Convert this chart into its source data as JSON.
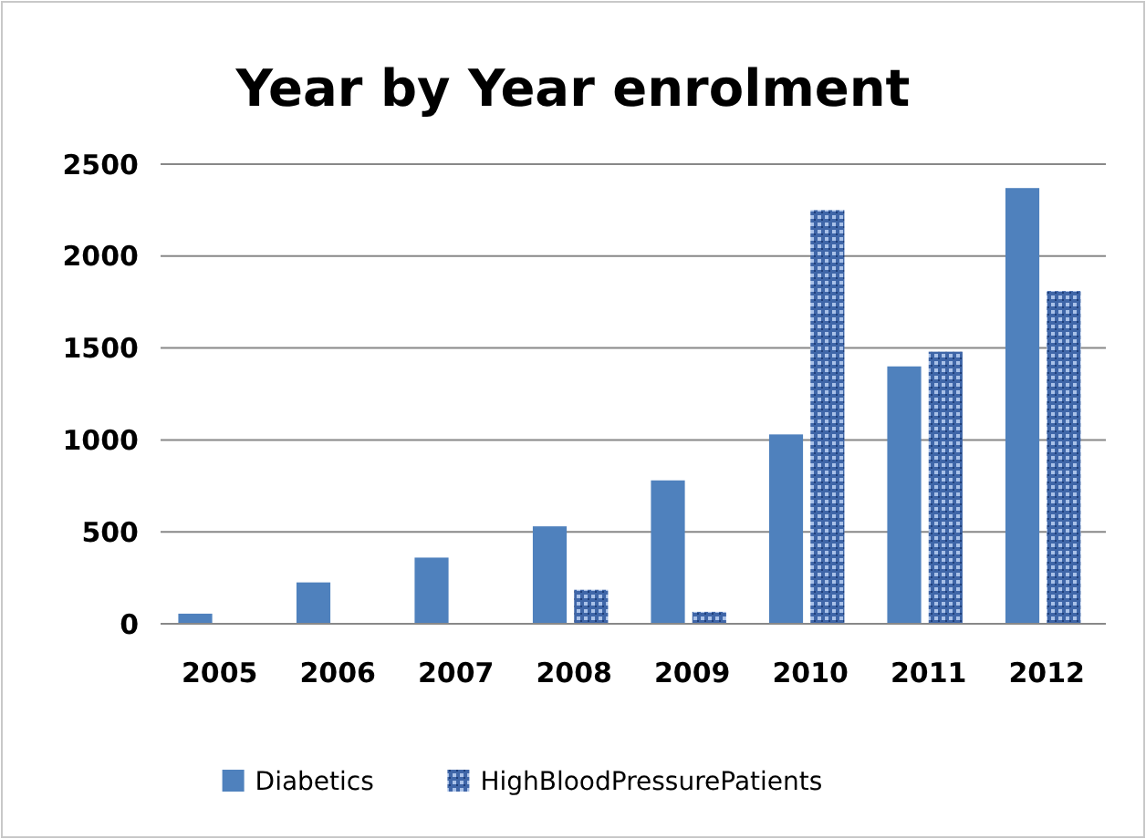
{
  "chart_data": {
    "type": "bar",
    "title": "Year by Year enrolment",
    "categories": [
      "2005",
      "2006",
      "2007",
      "2008",
      "2009",
      "2010",
      "2011",
      "2012"
    ],
    "series": [
      {
        "name": "Diabetics",
        "color": "#4f81bd",
        "values": [
          55,
          225,
          360,
          530,
          780,
          1030,
          1400,
          2370
        ]
      },
      {
        "name": "HighBloodPressurePatients",
        "color": "#3f66a8",
        "values": [
          0,
          0,
          0,
          185,
          65,
          2250,
          1480,
          1810
        ]
      }
    ],
    "ylim": [
      0,
      2500
    ],
    "yticks": [
      0,
      500,
      1000,
      1500,
      2000,
      2500
    ],
    "grid": "y",
    "legend": "bottom"
  }
}
